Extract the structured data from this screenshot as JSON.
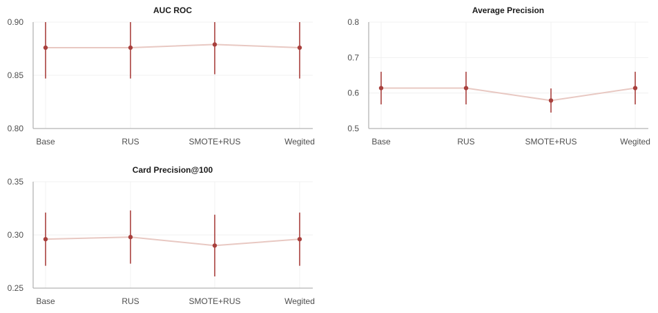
{
  "chart_data": [
    {
      "type": "line",
      "title": "AUC ROC",
      "categories": [
        "Base",
        "RUS",
        "SMOTE+RUS",
        "Wegited"
      ],
      "series": [
        {
          "values": [
            0.876,
            0.876,
            0.879,
            0.876
          ],
          "error_low": [
            0.847,
            0.847,
            0.851,
            0.847
          ],
          "error_high": [
            0.905,
            0.905,
            0.907,
            0.905
          ]
        }
      ],
      "ylim": [
        0.8,
        0.9
      ],
      "yticks": [
        "0.80",
        "0.85",
        "0.90"
      ],
      "grid": true
    },
    {
      "type": "line",
      "title": "Average Precision",
      "categories": [
        "Base",
        "RUS",
        "SMOTE+RUS",
        "Wegited"
      ],
      "series": [
        {
          "values": [
            0.614,
            0.614,
            0.579,
            0.614
          ],
          "error_low": [
            0.568,
            0.568,
            0.545,
            0.568
          ],
          "error_high": [
            0.66,
            0.66,
            0.613,
            0.66
          ]
        }
      ],
      "ylim": [
        0.5,
        0.8
      ],
      "yticks": [
        "0.5",
        "0.6",
        "0.7",
        "0.8"
      ],
      "grid": true
    },
    {
      "type": "line",
      "title": "Card Precision@100",
      "categories": [
        "Base",
        "RUS",
        "SMOTE+RUS",
        "Wegited"
      ],
      "series": [
        {
          "values": [
            0.296,
            0.298,
            0.29,
            0.296
          ],
          "error_low": [
            0.271,
            0.273,
            0.261,
            0.271
          ],
          "error_high": [
            0.321,
            0.323,
            0.319,
            0.321
          ]
        }
      ],
      "ylim": [
        0.25,
        0.35
      ],
      "yticks": [
        "0.25",
        "0.30",
        "0.35"
      ],
      "grid": true
    }
  ],
  "colors": {
    "marker": "#a8403d",
    "line": "#e8c8c2",
    "errorbar": "#a8403d"
  }
}
